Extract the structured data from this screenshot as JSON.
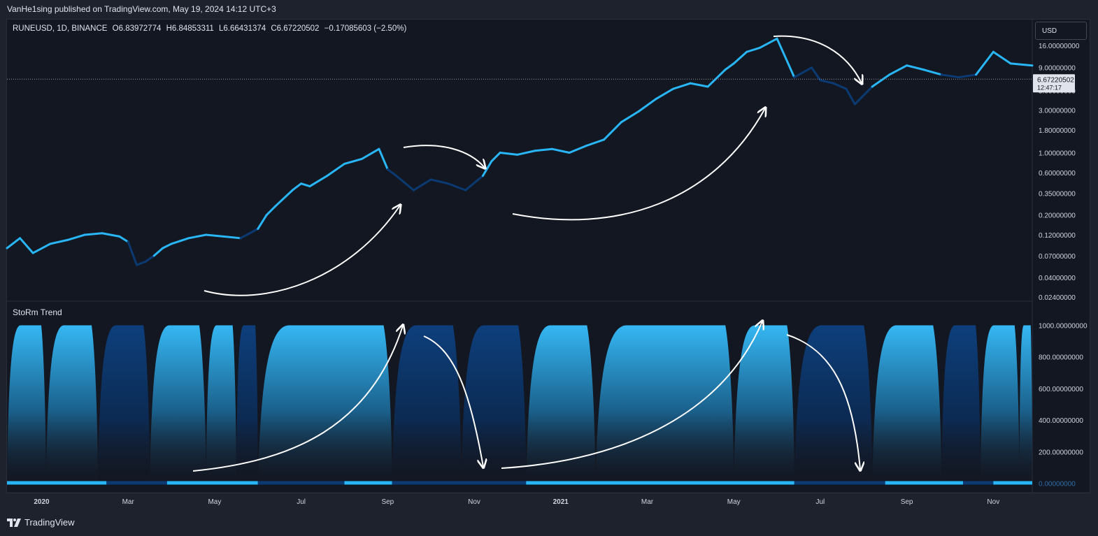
{
  "header": {
    "published": "VanHe1sing published on TradingView.com, May 19, 2024 14:12 UTC+3"
  },
  "legend": {
    "symbol": "RUNEUSD, 1D, BINANCE",
    "open": "O6.83972774",
    "high": "H6.84853311",
    "low": "L6.66431374",
    "close": "C6.67220502",
    "change": "−0.17085603 (−2.50%)"
  },
  "currency_button": "USD",
  "price_badge": {
    "price": "6.67220502",
    "countdown": "12:47:17"
  },
  "indicator_title": "StoRm Trend",
  "footer": {
    "brand": "TradingView"
  },
  "colors": {
    "bull": "#29b6f6",
    "bear": "#0b3a73",
    "background": "#131722",
    "arrows": "#ffffff"
  },
  "chart_data": [
    {
      "type": "line",
      "name": "price",
      "scale": "log",
      "ylim": [
        0.022,
        30
      ],
      "y_ticks": [
        "16.00000000",
        "9.00000000",
        "5.00000000",
        "3.00000000",
        "1.80000000",
        "1.00000000",
        "0.60000000",
        "0.35000000",
        "0.20000000",
        "0.12000000",
        "0.07000000",
        "0.04000000",
        "0.02400000"
      ],
      "x_ticks": [
        "2020",
        "Mar",
        "May",
        "Jul",
        "Sep",
        "Nov",
        "2021",
        "Mar",
        "May",
        "Jul",
        "Sep",
        "Nov"
      ],
      "x_tick_months": [
        0,
        2,
        4,
        6,
        8,
        10,
        12,
        14,
        16,
        18,
        20,
        22
      ],
      "x_range_months": [
        -0.8,
        22.9
      ],
      "x": [
        -0.8,
        -0.5,
        -0.2,
        0.2,
        0.6,
        1.0,
        1.4,
        1.8,
        2.0,
        2.2,
        2.4,
        2.6,
        2.8,
        3.0,
        3.4,
        3.8,
        4.2,
        4.6,
        5.0,
        5.2,
        5.4,
        5.8,
        6.0,
        6.2,
        6.6,
        7.0,
        7.4,
        7.8,
        8.0,
        8.2,
        8.6,
        9.0,
        9.4,
        9.8,
        10.2,
        10.4,
        10.6,
        11.0,
        11.4,
        11.8,
        12.2,
        12.6,
        13.0,
        13.4,
        13.8,
        14.2,
        14.6,
        15.0,
        15.4,
        15.8,
        16.0,
        16.3,
        16.6,
        17.0,
        17.4,
        17.8,
        18.0,
        18.3,
        18.6,
        18.8,
        19.2,
        19.6,
        20.0,
        20.4,
        20.8,
        21.2,
        21.6,
        22.0,
        22.4,
        22.9
      ],
      "values": [
        0.085,
        0.11,
        0.075,
        0.095,
        0.105,
        0.12,
        0.125,
        0.115,
        0.1,
        0.055,
        0.06,
        0.07,
        0.085,
        0.095,
        0.11,
        0.12,
        0.115,
        0.11,
        0.14,
        0.2,
        0.25,
        0.38,
        0.45,
        0.42,
        0.55,
        0.75,
        0.85,
        1.1,
        0.65,
        0.55,
        0.38,
        0.5,
        0.45,
        0.38,
        0.55,
        0.8,
        1.0,
        0.95,
        1.05,
        1.1,
        1.0,
        1.2,
        1.4,
        2.2,
        2.9,
        4.0,
        5.2,
        6.0,
        5.5,
        8.5,
        10.0,
        13.5,
        15.0,
        19.0,
        7.0,
        9.0,
        6.5,
        6.0,
        5.2,
        3.5,
        5.5,
        7.5,
        9.5,
        8.5,
        7.5,
        7.0,
        7.5,
        13.5,
        10.0,
        9.5
      ],
      "trend": [
        "bull",
        "bull",
        "bull",
        "bull",
        "bull",
        "bull",
        "bull",
        "bull",
        "bear",
        "bear",
        "bear",
        "bull",
        "bull",
        "bull",
        "bull",
        "bull",
        "bull",
        "bear",
        "bull",
        "bull",
        "bull",
        "bull",
        "bull",
        "bull",
        "bull",
        "bull",
        "bull",
        "bull",
        "bear",
        "bear",
        "bear",
        "bear",
        "bear",
        "bear",
        "bull",
        "bull",
        "bull",
        "bull",
        "bull",
        "bull",
        "bull",
        "bull",
        "bull",
        "bull",
        "bull",
        "bull",
        "bull",
        "bull",
        "bull",
        "bull",
        "bull",
        "bull",
        "bull",
        "bull",
        "bear",
        "bear",
        "bear",
        "bear",
        "bear",
        "bear",
        "bull",
        "bull",
        "bull",
        "bull",
        "bear",
        "bear",
        "bull",
        "bull",
        "bull",
        "bull"
      ],
      "last_price": 6.67220502
    },
    {
      "type": "area",
      "name": "StoRm Trend",
      "ylim": [
        -60,
        1060
      ],
      "y_ticks": [
        "1000.00000000",
        "800.00000000",
        "600.00000000",
        "400.00000000",
        "200.00000000",
        "0.00000000"
      ],
      "y_tick_values": [
        1000,
        800,
        600,
        400,
        200,
        0
      ],
      "cycles": [
        {
          "start": -0.8,
          "end": 0.1,
          "trend": "bull"
        },
        {
          "start": 0.1,
          "end": 1.3,
          "trend": "bull"
        },
        {
          "start": 1.3,
          "end": 2.5,
          "trend": "bear"
        },
        {
          "start": 2.5,
          "end": 3.8,
          "trend": "bull"
        },
        {
          "start": 3.8,
          "end": 4.5,
          "trend": "bull"
        },
        {
          "start": 4.5,
          "end": 5.0,
          "trend": "bear"
        },
        {
          "start": 5.0,
          "end": 8.1,
          "trend": "bull"
        },
        {
          "start": 8.1,
          "end": 9.7,
          "trend": "bear"
        },
        {
          "start": 9.7,
          "end": 11.2,
          "trend": "bear"
        },
        {
          "start": 11.2,
          "end": 12.8,
          "trend": "bull"
        },
        {
          "start": 12.8,
          "end": 16.0,
          "trend": "bull"
        },
        {
          "start": 16.0,
          "end": 17.4,
          "trend": "bull"
        },
        {
          "start": 17.4,
          "end": 19.2,
          "trend": "bear"
        },
        {
          "start": 19.2,
          "end": 20.8,
          "trend": "bull"
        },
        {
          "start": 20.8,
          "end": 21.7,
          "trend": "bear"
        },
        {
          "start": 21.7,
          "end": 22.6,
          "trend": "bull"
        },
        {
          "start": 22.6,
          "end": 22.9,
          "trend": "bull"
        }
      ],
      "baseline_segments": [
        {
          "start": -0.8,
          "end": 1.5,
          "trend": "bull"
        },
        {
          "start": 1.5,
          "end": 2.9,
          "trend": "bear"
        },
        {
          "start": 2.9,
          "end": 5.0,
          "trend": "bull"
        },
        {
          "start": 5.0,
          "end": 7.0,
          "trend": "bear"
        },
        {
          "start": 7.0,
          "end": 8.1,
          "trend": "bull"
        },
        {
          "start": 8.1,
          "end": 11.2,
          "trend": "bear"
        },
        {
          "start": 11.2,
          "end": 17.4,
          "trend": "bull"
        },
        {
          "start": 17.4,
          "end": 19.5,
          "trend": "bear"
        },
        {
          "start": 19.5,
          "end": 21.3,
          "trend": "bull"
        },
        {
          "start": 21.3,
          "end": 22.0,
          "trend": "bear"
        },
        {
          "start": 22.0,
          "end": 22.9,
          "trend": "bull"
        }
      ]
    }
  ]
}
